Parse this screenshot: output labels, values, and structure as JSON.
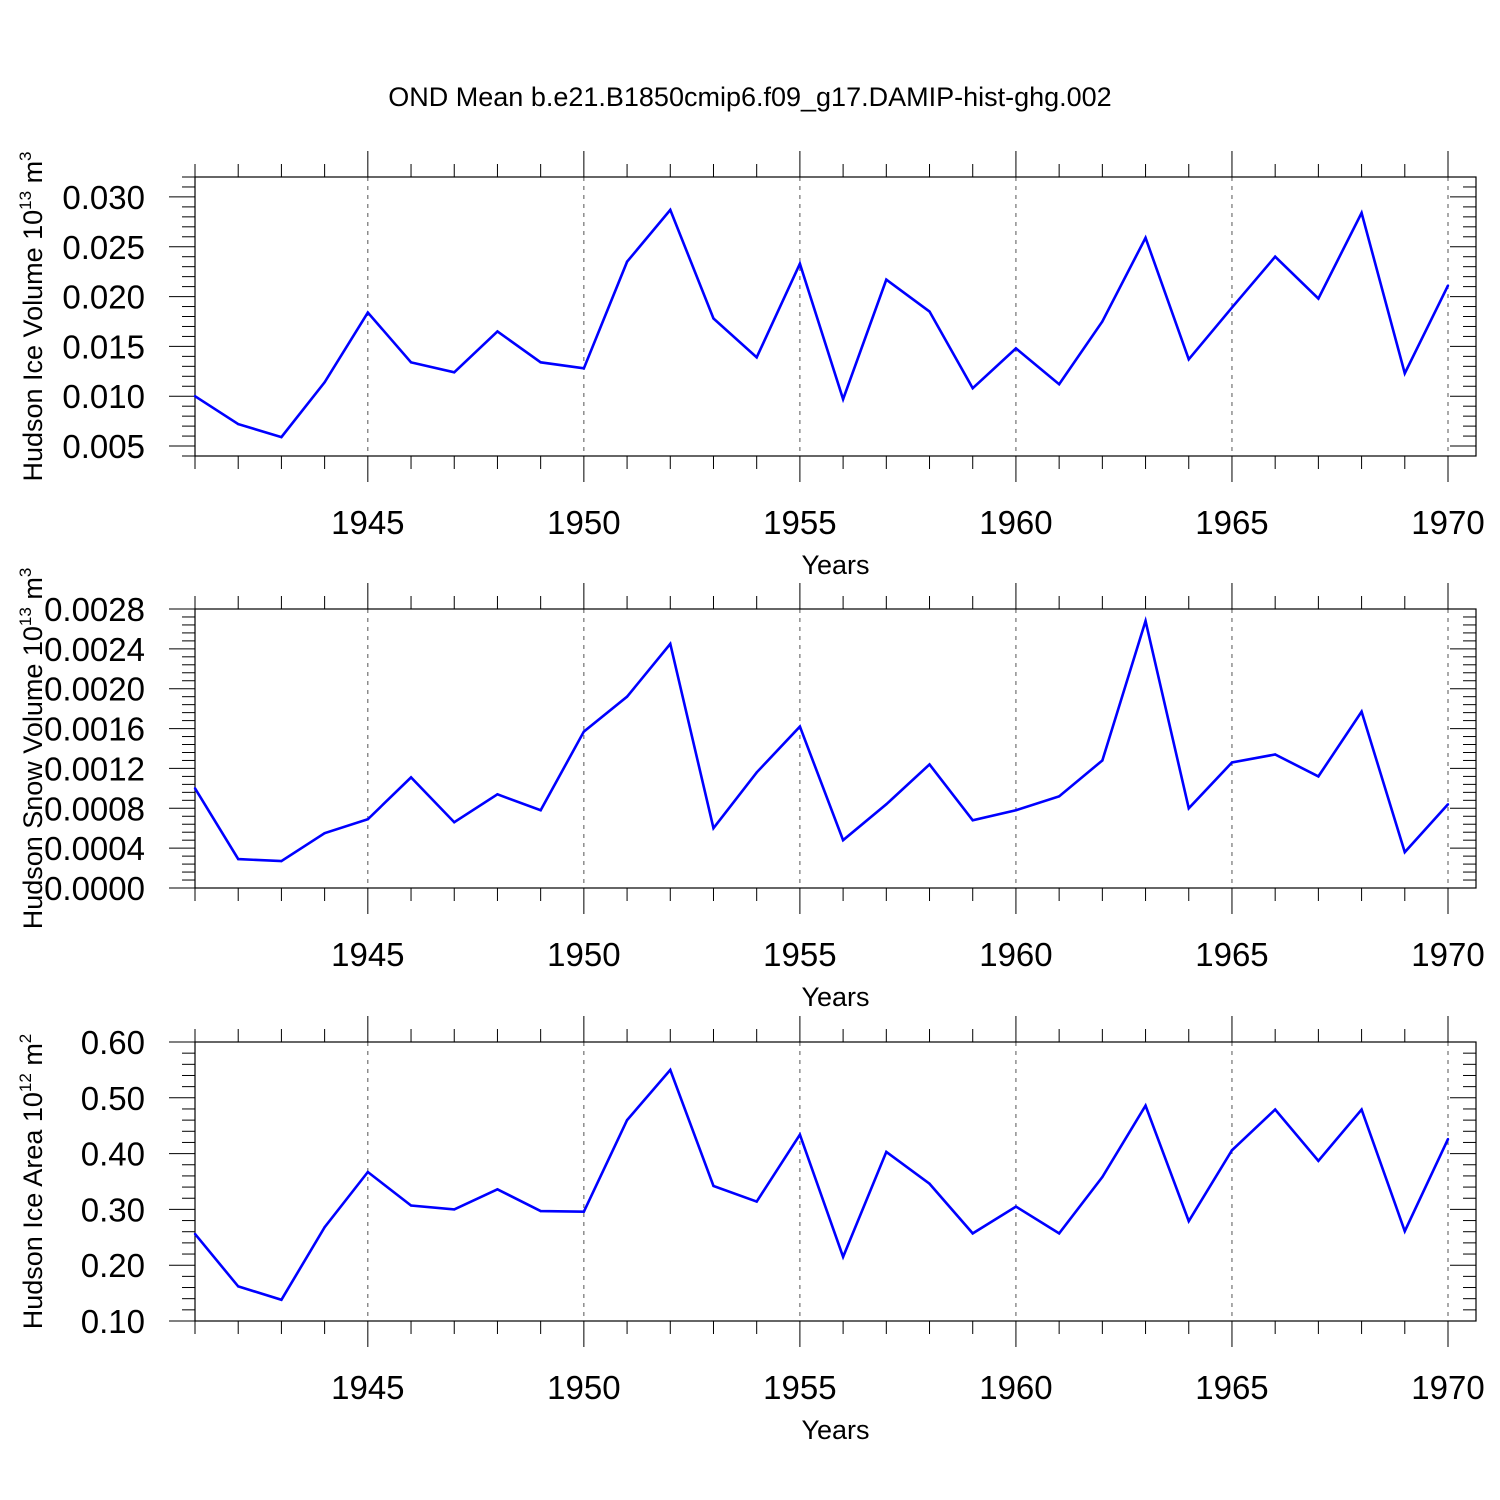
{
  "figure_title": "OND Mean b.e21.B1850cmip6.f09_g17.DAMIP-hist-ghg.002",
  "colors": {
    "line": "#0000ff",
    "axis": "#000000",
    "grid": "#555555",
    "background": "#ffffff"
  },
  "chart_data": [
    {
      "type": "line",
      "title": "",
      "ylabel_main": "Hudson Ice Volume 10",
      "ylabel_exp": "13",
      "ylabel_unit": "m",
      "ylabel_unit_exp": "3",
      "xlabel": "Years",
      "xlim": [
        1941,
        1970
      ],
      "ylim": [
        0.004,
        0.032
      ],
      "yticks": [
        0.005,
        0.01,
        0.015,
        0.02,
        0.025,
        0.03
      ],
      "ytick_labels": [
        "0.005",
        "0.010",
        "0.015",
        "0.020",
        "0.025",
        "0.030"
      ],
      "xticks": [
        1945,
        1950,
        1955,
        1960,
        1965,
        1970
      ],
      "xtick_labels": [
        "1945",
        "1950",
        "1955",
        "1960",
        "1965",
        "1970"
      ],
      "grid": "vertical dashed at major x ticks",
      "series": [
        {
          "name": "Hudson Ice Volume",
          "x": [
            1941,
            1942,
            1943,
            1944,
            1945,
            1946,
            1947,
            1948,
            1949,
            1950,
            1951,
            1952,
            1953,
            1954,
            1955,
            1956,
            1957,
            1958,
            1959,
            1960,
            1961,
            1962,
            1963,
            1964,
            1965,
            1966,
            1967,
            1968,
            1969,
            1970
          ],
          "values": [
            0.01,
            0.0072,
            0.0059,
            0.0114,
            0.0184,
            0.0134,
            0.0124,
            0.0165,
            0.0134,
            0.0128,
            0.0235,
            0.0287,
            0.0178,
            0.0139,
            0.0233,
            0.0097,
            0.0217,
            0.0185,
            0.0108,
            0.0148,
            0.0112,
            0.0175,
            0.0259,
            0.0137,
            0.0189,
            0.024,
            0.0198,
            0.0284,
            0.0123,
            0.0211
          ]
        }
      ]
    },
    {
      "type": "line",
      "title": "",
      "ylabel_main": "Hudson Snow Volume 10",
      "ylabel_exp": "13",
      "ylabel_unit": "m",
      "ylabel_unit_exp": "3",
      "xlabel": "Years",
      "xlim": [
        1941,
        1970
      ],
      "ylim": [
        0.0,
        0.0028
      ],
      "yticks": [
        0.0,
        0.0004,
        0.0008,
        0.0012,
        0.0016,
        0.002,
        0.0024,
        0.0028
      ],
      "ytick_labels": [
        "0.0000",
        "0.0004",
        "0.0008",
        "0.0012",
        "0.0016",
        "0.0020",
        "0.0024",
        "0.0028"
      ],
      "xticks": [
        1945,
        1950,
        1955,
        1960,
        1965,
        1970
      ],
      "xtick_labels": [
        "1945",
        "1950",
        "1955",
        "1960",
        "1965",
        "1970"
      ],
      "grid": "vertical dashed at major x ticks",
      "series": [
        {
          "name": "Hudson Snow Volume",
          "x": [
            1941,
            1942,
            1943,
            1944,
            1945,
            1946,
            1947,
            1948,
            1949,
            1950,
            1951,
            1952,
            1953,
            1954,
            1955,
            1956,
            1957,
            1958,
            1959,
            1960,
            1961,
            1962,
            1963,
            1964,
            1965,
            1966,
            1967,
            1968,
            1969,
            1970
          ],
          "values": [
            0.001,
            0.00029,
            0.00027,
            0.00055,
            0.00069,
            0.00111,
            0.00066,
            0.00094,
            0.00078,
            0.00157,
            0.00192,
            0.00245,
            0.0006,
            0.00116,
            0.00162,
            0.00048,
            0.00084,
            0.00124,
            0.00068,
            0.00078,
            0.00092,
            0.00128,
            0.00268,
            0.0008,
            0.00126,
            0.00134,
            0.00112,
            0.00177,
            0.00036,
            0.00084
          ]
        }
      ]
    },
    {
      "type": "line",
      "title": "",
      "ylabel_main": "Hudson Ice Area 10",
      "ylabel_exp": "12",
      "ylabel_unit": "m",
      "ylabel_unit_exp": "2",
      "xlabel": "Years",
      "xlim": [
        1941,
        1970
      ],
      "ylim": [
        0.1,
        0.6
      ],
      "yticks": [
        0.1,
        0.2,
        0.3,
        0.4,
        0.5,
        0.6
      ],
      "ytick_labels": [
        "0.10",
        "0.20",
        "0.30",
        "0.40",
        "0.50",
        "0.60"
      ],
      "xticks": [
        1945,
        1950,
        1955,
        1960,
        1965,
        1970
      ],
      "xtick_labels": [
        "1945",
        "1950",
        "1955",
        "1960",
        "1965",
        "1970"
      ],
      "grid": "vertical dashed at major x ticks",
      "series": [
        {
          "name": "Hudson Ice Area",
          "x": [
            1941,
            1942,
            1943,
            1944,
            1945,
            1946,
            1947,
            1948,
            1949,
            1950,
            1951,
            1952,
            1953,
            1954,
            1955,
            1956,
            1957,
            1958,
            1959,
            1960,
            1961,
            1962,
            1963,
            1964,
            1965,
            1966,
            1967,
            1968,
            1969,
            1970
          ],
          "values": [
            0.256,
            0.162,
            0.138,
            0.268,
            0.367,
            0.307,
            0.3,
            0.336,
            0.297,
            0.296,
            0.46,
            0.55,
            0.342,
            0.314,
            0.434,
            0.215,
            0.403,
            0.346,
            0.257,
            0.305,
            0.257,
            0.358,
            0.486,
            0.279,
            0.406,
            0.479,
            0.387,
            0.479,
            0.261,
            0.426
          ]
        }
      ]
    }
  ]
}
